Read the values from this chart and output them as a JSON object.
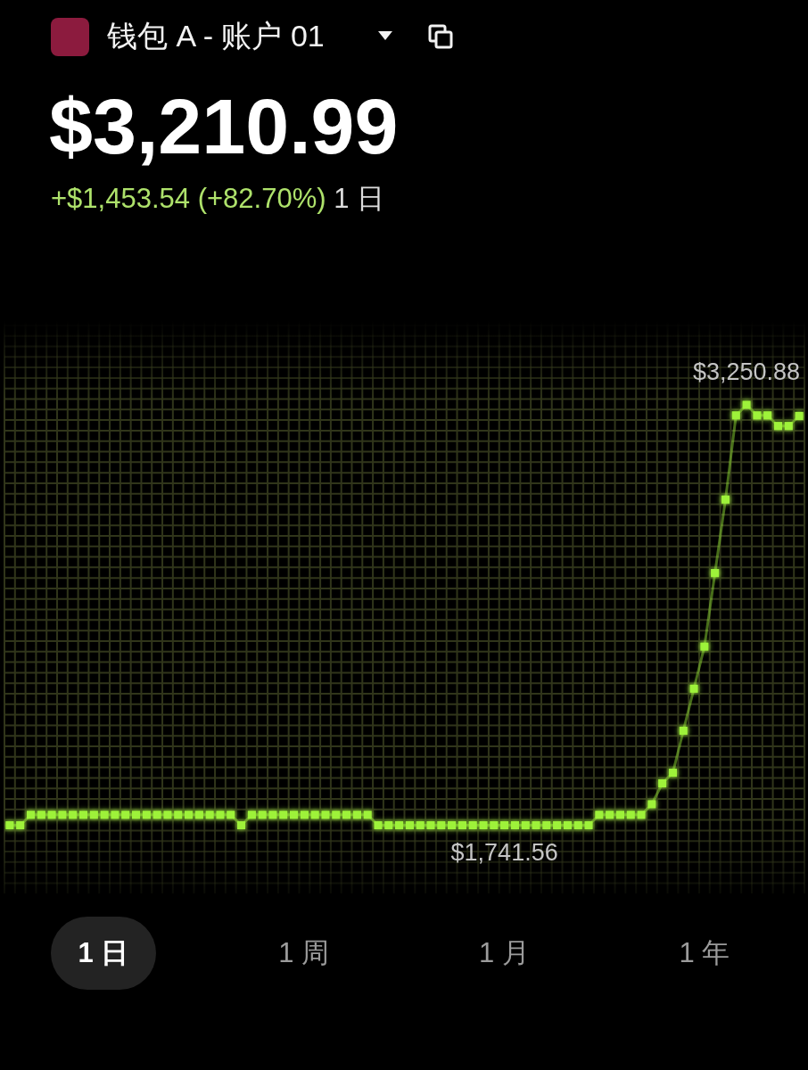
{
  "chart_data": {
    "type": "line",
    "title": "钱包 A - 账户 01",
    "subtitle": "$3,210.99",
    "annotations": [
      "+$1,453.54 (+82.70%)",
      "1 日",
      "1 日",
      "1 周",
      "1 月",
      "1 年"
    ],
    "categories": [
      null,
      null,
      null,
      null,
      null,
      null,
      null,
      null,
      null,
      null,
      null,
      null,
      null,
      null,
      null,
      null,
      null,
      null,
      null,
      null,
      null,
      null,
      null,
      null,
      null,
      null,
      null,
      null,
      null,
      null,
      null,
      null,
      null,
      null,
      null,
      null,
      null,
      null,
      null,
      null,
      null,
      null,
      null,
      null,
      null,
      null,
      null,
      null,
      null,
      null,
      null,
      null,
      null,
      null,
      null,
      null,
      null,
      null,
      null,
      null,
      null,
      null,
      null,
      null,
      null,
      null,
      null,
      null,
      null,
      null,
      null,
      null,
      null,
      null,
      null,
      null
    ],
    "values": [
      1741.56,
      1741.56,
      1779,
      1779,
      1779,
      1779,
      1779,
      1779,
      1779,
      1779,
      1779,
      1779,
      1779,
      1779,
      1779,
      1779,
      1779,
      1779,
      1779,
      1779,
      1779,
      1779,
      1741.56,
      1779,
      1779,
      1779,
      1779,
      1779,
      1779,
      1779,
      1779,
      1779,
      1779,
      1779,
      1779,
      1741.56,
      1741.56,
      1741.56,
      1741.56,
      1741.56,
      1741.56,
      1741.56,
      1741.56,
      1741.56,
      1741.56,
      1741.56,
      1741.56,
      1741.56,
      1741.56,
      1741.56,
      1741.56,
      1741.56,
      1741.56,
      1741.56,
      1741.56,
      1741.56,
      1779,
      1779,
      1779,
      1779,
      1779,
      1817,
      1892,
      1930,
      2081,
      2232,
      2383,
      2647,
      2911,
      3213,
      3250.88,
      3213,
      3213,
      3175,
      3175,
      3210.99
    ],
    "value_labels": [
      null,
      null,
      null,
      null,
      null,
      null,
      null,
      null,
      null,
      null,
      null,
      null,
      null,
      null,
      null,
      null,
      null,
      null,
      null,
      null,
      null,
      null,
      null,
      null,
      null,
      null,
      null,
      null,
      null,
      null,
      null,
      null,
      null,
      null,
      null,
      null,
      null,
      null,
      null,
      null,
      null,
      null,
      null,
      null,
      null,
      null,
      null,
      "$1,741.56",
      null,
      null,
      null,
      null,
      null,
      null,
      null,
      null,
      null,
      null,
      null,
      null,
      null,
      null,
      null,
      null,
      null,
      null,
      null,
      null,
      null,
      null,
      "$3,250.88",
      null,
      null,
      null,
      null,
      null
    ],
    "color": "#9ef23a",
    "marker": "square",
    "grid": true,
    "tick_labels": false
  }
}
